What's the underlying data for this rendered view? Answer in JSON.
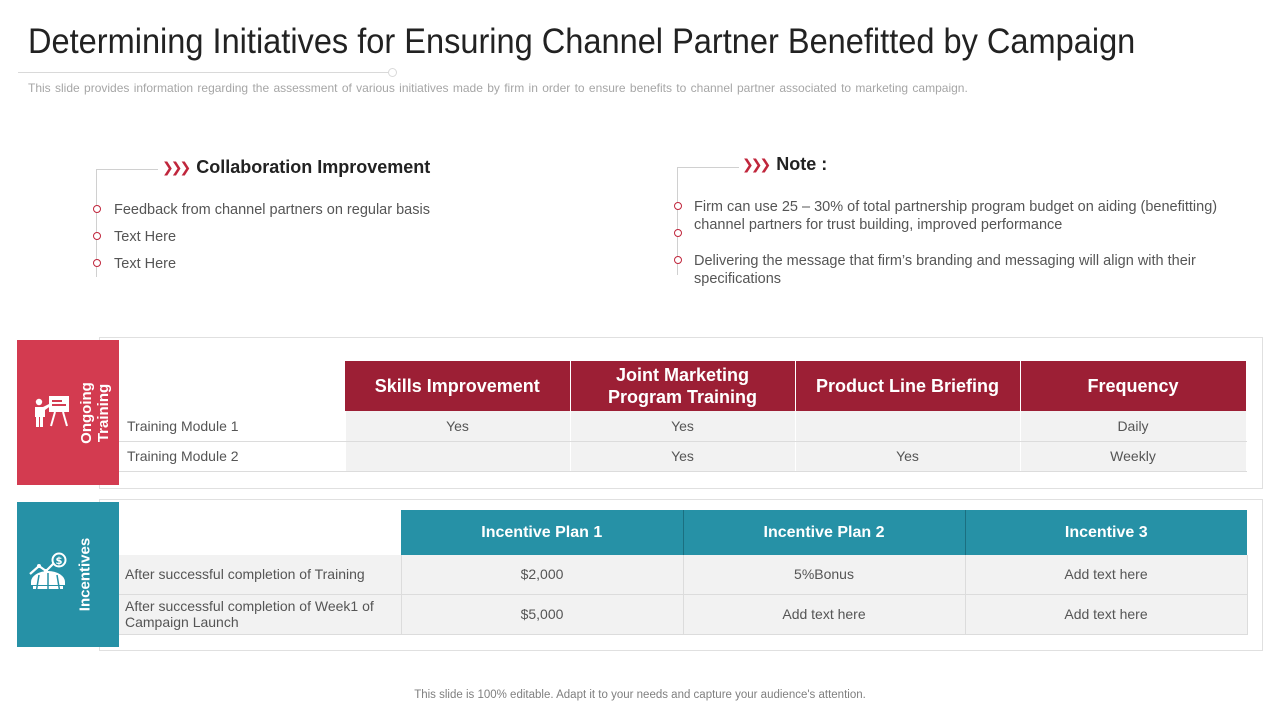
{
  "slide": {
    "title": "Determining Initiatives for Ensuring Channel Partner Benefitted by Campaign",
    "subtitle": "This slide provides information regarding the assessment of various initiatives made by firm in order to ensure benefits to channel partner associated to marketing campaign.",
    "footer": "This slide is 100% editable. Adapt it to your needs and capture your audience's attention."
  },
  "collaboration": {
    "heading": "Collaboration Improvement",
    "items": [
      "Feedback from channel partners on regular basis",
      "Text Here",
      "Text Here"
    ]
  },
  "note": {
    "heading": "Note :",
    "items": [
      "Firm can use 25 – 30% of total partnership program budget on aiding (benefitting) channel partners for trust building, improved performance",
      "Delivering the message that firm’s branding and messaging will align with their specifications"
    ]
  },
  "training": {
    "side_label_line1": "Ongoing",
    "side_label_line2": "Training",
    "icon": "presentation-icon",
    "columns": [
      "Skills Improvement",
      "Joint Marketing Program Training",
      "Product Line Briefing",
      "Frequency"
    ],
    "rows": [
      {
        "label": "Training Module 1",
        "cells": [
          "Yes",
          "Yes",
          "",
          "Daily"
        ]
      },
      {
        "label": "Training Module 2",
        "cells": [
          "",
          "Yes",
          "Yes",
          "Weekly"
        ]
      }
    ]
  },
  "incentives": {
    "side_label": "Incentives",
    "icon": "money-growth-icon",
    "columns": [
      "Incentive Plan 1",
      "Incentive Plan 2",
      "Incentive 3"
    ],
    "rows": [
      {
        "label": "After successful completion of Training",
        "cells": [
          "$2,000",
          "5%Bonus",
          "Add text here"
        ]
      },
      {
        "label": "After successful completion of Week1 of Campaign Launch",
        "cells": [
          "$5,000",
          "Add text here",
          "Add text here"
        ]
      }
    ]
  },
  "colors": {
    "red_accent": "#c0263c",
    "table1_header": "#9c1f35",
    "training_tab": "#d33b50",
    "teal": "#2691a6"
  }
}
